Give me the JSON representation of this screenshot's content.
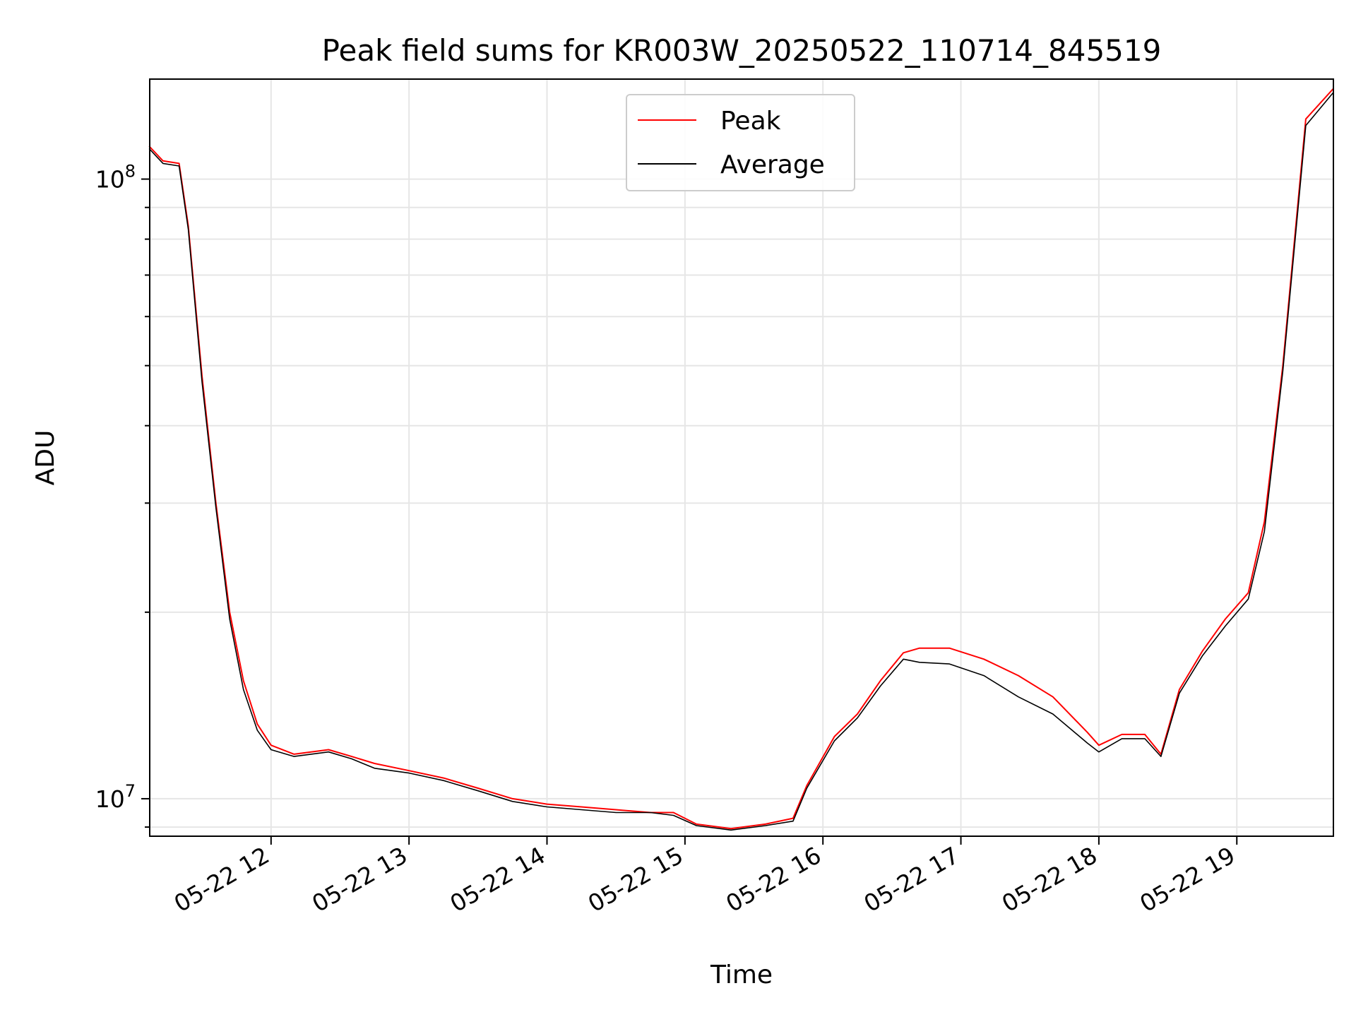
{
  "chart_data": {
    "type": "line",
    "title": "Peak field sums for KR003W_20250522_110714_845519",
    "xlabel": "Time",
    "ylabel": "ADU",
    "x_scale": "time",
    "y_scale": "log",
    "xlim": [
      "2025-05-22T11:07:14",
      "2025-05-22T19:42:00"
    ],
    "ylim": [
      8700000,
      145000000
    ],
    "x_ticks": [
      {
        "value": "2025-05-22T12:00",
        "label": "05-22 12"
      },
      {
        "value": "2025-05-22T13:00",
        "label": "05-22 13"
      },
      {
        "value": "2025-05-22T14:00",
        "label": "05-22 14"
      },
      {
        "value": "2025-05-22T15:00",
        "label": "05-22 15"
      },
      {
        "value": "2025-05-22T16:00",
        "label": "05-22 16"
      },
      {
        "value": "2025-05-22T17:00",
        "label": "05-22 17"
      },
      {
        "value": "2025-05-22T18:00",
        "label": "05-22 18"
      },
      {
        "value": "2025-05-22T19:00",
        "label": "05-22 19"
      }
    ],
    "y_major_ticks": [
      {
        "value": 10000000,
        "base": "10",
        "exp": "7"
      },
      {
        "value": 100000000,
        "base": "10",
        "exp": "8"
      }
    ],
    "y_minor_ticks": [
      9000000,
      20000000,
      30000000,
      40000000,
      50000000,
      60000000,
      70000000,
      80000000,
      90000000
    ],
    "grid": true,
    "legend": {
      "placement": "top-center"
    },
    "series": [
      {
        "name": "Peak",
        "color": "#ff0000",
        "x": [
          "2025-05-22T11:07",
          "2025-05-22T11:13",
          "2025-05-22T11:20",
          "2025-05-22T11:24",
          "2025-05-22T11:30",
          "2025-05-22T11:36",
          "2025-05-22T11:42",
          "2025-05-22T11:48",
          "2025-05-22T11:54",
          "2025-05-22T12:00",
          "2025-05-22T12:10",
          "2025-05-22T12:25",
          "2025-05-22T12:35",
          "2025-05-22T12:45",
          "2025-05-22T13:00",
          "2025-05-22T13:15",
          "2025-05-22T13:30",
          "2025-05-22T13:45",
          "2025-05-22T14:00",
          "2025-05-22T14:15",
          "2025-05-22T14:30",
          "2025-05-22T14:45",
          "2025-05-22T14:55",
          "2025-05-22T15:05",
          "2025-05-22T15:20",
          "2025-05-22T15:35",
          "2025-05-22T15:47",
          "2025-05-22T15:53",
          "2025-05-22T16:05",
          "2025-05-22T16:15",
          "2025-05-22T16:25",
          "2025-05-22T16:35",
          "2025-05-22T16:42",
          "2025-05-22T16:55",
          "2025-05-22T17:10",
          "2025-05-22T17:25",
          "2025-05-22T17:40",
          "2025-05-22T17:55",
          "2025-05-22T18:00",
          "2025-05-22T18:10",
          "2025-05-22T18:20",
          "2025-05-22T18:27",
          "2025-05-22T18:35",
          "2025-05-22T18:45",
          "2025-05-22T18:55",
          "2025-05-22T19:05",
          "2025-05-22T19:12",
          "2025-05-22T19:20",
          "2025-05-22T19:30",
          "2025-05-22T19:42"
        ],
        "y": [
          113000000,
          107000000,
          106000000,
          84000000,
          48000000,
          30000000,
          20000000,
          15500000,
          13200000,
          12200000,
          11800000,
          12000000,
          11700000,
          11400000,
          11100000,
          10800000,
          10400000,
          10000000,
          9800000,
          9700000,
          9600000,
          9500000,
          9500000,
          9100000,
          8950000,
          9100000,
          9300000,
          10500000,
          12600000,
          13700000,
          15500000,
          17200000,
          17500000,
          17500000,
          16800000,
          15800000,
          14600000,
          12800000,
          12200000,
          12700000,
          12700000,
          11800000,
          15000000,
          17300000,
          19500000,
          21500000,
          28000000,
          50000000,
          125000000,
          140000000
        ]
      },
      {
        "name": "Average",
        "color": "#000000",
        "x": [
          "2025-05-22T11:07",
          "2025-05-22T11:13",
          "2025-05-22T11:20",
          "2025-05-22T11:24",
          "2025-05-22T11:30",
          "2025-05-22T11:36",
          "2025-05-22T11:42",
          "2025-05-22T11:48",
          "2025-05-22T11:54",
          "2025-05-22T12:00",
          "2025-05-22T12:10",
          "2025-05-22T12:25",
          "2025-05-22T12:35",
          "2025-05-22T12:45",
          "2025-05-22T13:00",
          "2025-05-22T13:15",
          "2025-05-22T13:30",
          "2025-05-22T13:45",
          "2025-05-22T14:00",
          "2025-05-22T14:15",
          "2025-05-22T14:30",
          "2025-05-22T14:45",
          "2025-05-22T14:55",
          "2025-05-22T15:05",
          "2025-05-22T15:20",
          "2025-05-22T15:35",
          "2025-05-22T15:47",
          "2025-05-22T15:53",
          "2025-05-22T16:05",
          "2025-05-22T16:15",
          "2025-05-22T16:25",
          "2025-05-22T16:35",
          "2025-05-22T16:42",
          "2025-05-22T16:55",
          "2025-05-22T17:10",
          "2025-05-22T17:25",
          "2025-05-22T17:40",
          "2025-05-22T17:55",
          "2025-05-22T18:00",
          "2025-05-22T18:10",
          "2025-05-22T18:20",
          "2025-05-22T18:27",
          "2025-05-22T18:35",
          "2025-05-22T18:45",
          "2025-05-22T18:55",
          "2025-05-22T19:05",
          "2025-05-22T19:12",
          "2025-05-22T19:20",
          "2025-05-22T19:30",
          "2025-05-22T19:42"
        ],
        "y": [
          112000000,
          106000000,
          105000000,
          83000000,
          47000000,
          29500000,
          19500000,
          15000000,
          12900000,
          12000000,
          11700000,
          11900000,
          11600000,
          11200000,
          11000000,
          10700000,
          10300000,
          9900000,
          9700000,
          9600000,
          9500000,
          9500000,
          9400000,
          9050000,
          8900000,
          9050000,
          9200000,
          10400000,
          12400000,
          13500000,
          15200000,
          16800000,
          16600000,
          16500000,
          15800000,
          14600000,
          13700000,
          12300000,
          11900000,
          12500000,
          12500000,
          11700000,
          14800000,
          17000000,
          19000000,
          21000000,
          27000000,
          49000000,
          122000000,
          138000000
        ]
      }
    ]
  }
}
